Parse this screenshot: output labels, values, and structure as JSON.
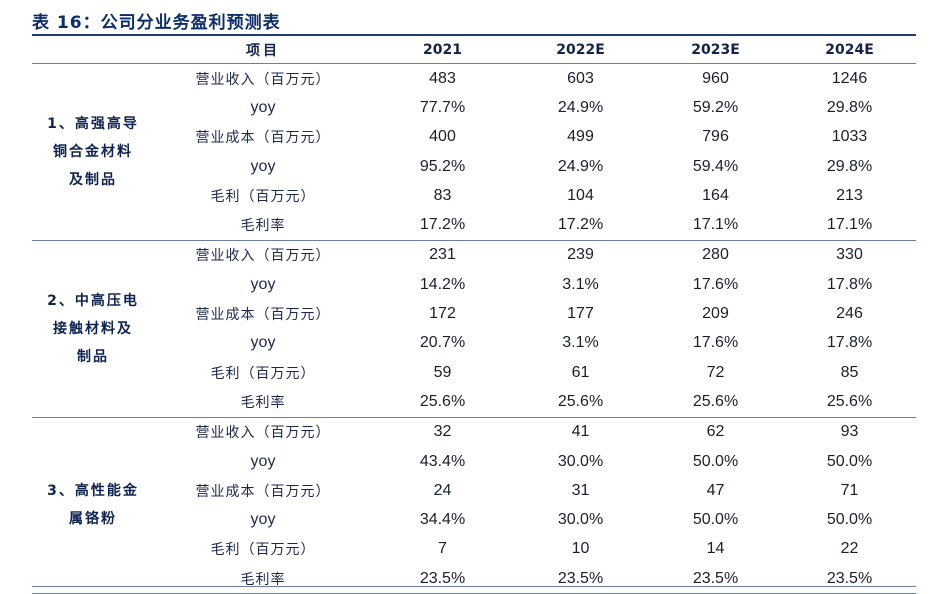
{
  "title": "表 16：公司分业务盈利预测表",
  "header": {
    "item": "项目",
    "years": [
      "2021",
      "2022E",
      "2023E",
      "2024E"
    ]
  },
  "segments": [
    {
      "name_lines": [
        "1、高强高导",
        "铜合金材料",
        "及制品"
      ],
      "rows": [
        {
          "label": "营业收入（百万元）",
          "values": [
            "483",
            "603",
            "960",
            "1246"
          ]
        },
        {
          "label": "yoy",
          "values": [
            "77.7%",
            "24.9%",
            "59.2%",
            "29.8%"
          ]
        },
        {
          "label": "营业成本（百万元）",
          "values": [
            "400",
            "499",
            "796",
            "1033"
          ]
        },
        {
          "label": "yoy",
          "values": [
            "95.2%",
            "24.9%",
            "59.4%",
            "29.8%"
          ]
        },
        {
          "label": "毛利（百万元）",
          "values": [
            "83",
            "104",
            "164",
            "213"
          ]
        },
        {
          "label": "毛利率",
          "values": [
            "17.2%",
            "17.2%",
            "17.1%",
            "17.1%"
          ]
        }
      ]
    },
    {
      "name_lines": [
        "2、中高压电",
        "接触材料及",
        "制品"
      ],
      "rows": [
        {
          "label": "营业收入（百万元）",
          "values": [
            "231",
            "239",
            "280",
            "330"
          ]
        },
        {
          "label": "yoy",
          "values": [
            "14.2%",
            "3.1%",
            "17.6%",
            "17.8%"
          ]
        },
        {
          "label": "营业成本（百万元）",
          "values": [
            "172",
            "177",
            "209",
            "246"
          ]
        },
        {
          "label": "yoy",
          "values": [
            "20.7%",
            "3.1%",
            "17.6%",
            "17.8%"
          ]
        },
        {
          "label": "毛利（百万元）",
          "values": [
            "59",
            "61",
            "72",
            "85"
          ]
        },
        {
          "label": "毛利率",
          "values": [
            "25.6%",
            "25.6%",
            "25.6%",
            "25.6%"
          ]
        }
      ]
    },
    {
      "name_lines": [
        "3、高性能金",
        "属铬粉"
      ],
      "rows": [
        {
          "label": "营业收入（百万元）",
          "values": [
            "32",
            "41",
            "62",
            "93"
          ]
        },
        {
          "label": "yoy",
          "values": [
            "43.4%",
            "30.0%",
            "50.0%",
            "50.0%"
          ]
        },
        {
          "label": "营业成本（百万元）",
          "values": [
            "24",
            "31",
            "47",
            "71"
          ]
        },
        {
          "label": "yoy",
          "values": [
            "34.4%",
            "30.0%",
            "50.0%",
            "50.0%"
          ]
        },
        {
          "label": "毛利（百万元）",
          "values": [
            "7",
            "10",
            "14",
            "22"
          ]
        },
        {
          "label": "毛利率",
          "values": [
            "23.5%",
            "23.5%",
            "23.5%",
            "23.5%"
          ]
        }
      ]
    }
  ]
}
